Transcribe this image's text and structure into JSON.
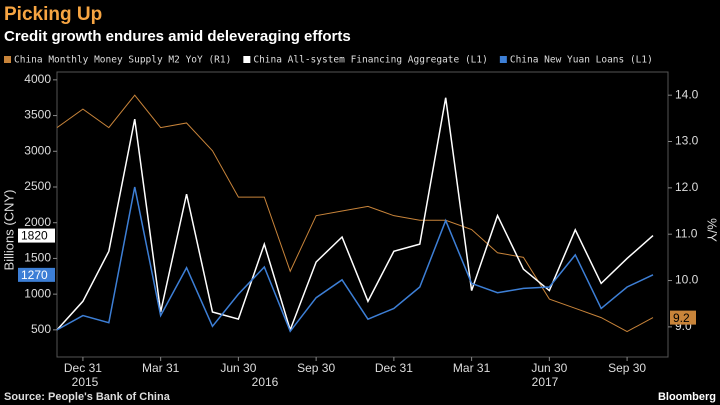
{
  "chart_data": {
    "type": "line",
    "title": "Picking Up",
    "subtitle": "Credit growth endures amid deleveraging efforts",
    "y_label": "Billions (CNY)",
    "y2_label": "%/Y",
    "source": "Source: People's Bank of China",
    "brand": "Bloomberg",
    "years": [
      "2015",
      "2016",
      "2017"
    ],
    "categories": [
      null,
      "Dec 31",
      null,
      null,
      "Mar 31",
      null,
      null,
      "Jun 30",
      null,
      null,
      "Sep 30",
      null,
      null,
      "Dec 31",
      null,
      null,
      "Mar 31",
      null,
      null,
      "Jun 30",
      null,
      null,
      "Sep 30",
      null
    ],
    "series": [
      {
        "name": "China Monthly Money Supply M2 YoY (R1)",
        "color": "#c8843a",
        "axis": "y2",
        "values": [
          13.3,
          13.7,
          13.3,
          14.0,
          13.3,
          13.4,
          12.8,
          11.8,
          11.8,
          10.2,
          11.4,
          11.5,
          11.6,
          11.4,
          11.3,
          11.3,
          11.1,
          10.6,
          10.5,
          9.6,
          9.4,
          9.2,
          8.9,
          9.2
        ]
      },
      {
        "name": "China All-system Financing Aggregate (L1)",
        "color": "#ffffff",
        "values": [
          500,
          900,
          1600,
          3450,
          750,
          2400,
          750,
          650,
          1700,
          500,
          1450,
          1800,
          900,
          1600,
          1700,
          3750,
          1050,
          2100,
          1350,
          1050,
          1900,
          1150,
          1500,
          1820
        ]
      },
      {
        "name": "China New Yuan Loans (L1)",
        "color": "#3d7fd6",
        "values": [
          500,
          700,
          600,
          2500,
          700,
          1370,
          550,
          1000,
          1380,
          480,
          950,
          1200,
          650,
          800,
          1100,
          2030,
          1150,
          1020,
          1080,
          1100,
          1550,
          800,
          1100,
          1270
        ]
      }
    ],
    "ylim": [
      120,
      4110
    ],
    "yticks": [
      500,
      1000,
      1500,
      2000,
      2500,
      3000,
      3500,
      4000
    ],
    "y2lim": [
      8.35,
      14.5
    ],
    "y2ticks": [
      {
        "value": 9,
        "label": "9.0"
      },
      {
        "value": 10,
        "label": "10.0"
      },
      {
        "value": 11,
        "label": "11.0"
      },
      {
        "value": 12,
        "label": "12.0"
      },
      {
        "value": 13,
        "label": "13.0"
      },
      {
        "value": 14,
        "label": "14.0"
      }
    ],
    "grid": false
  }
}
